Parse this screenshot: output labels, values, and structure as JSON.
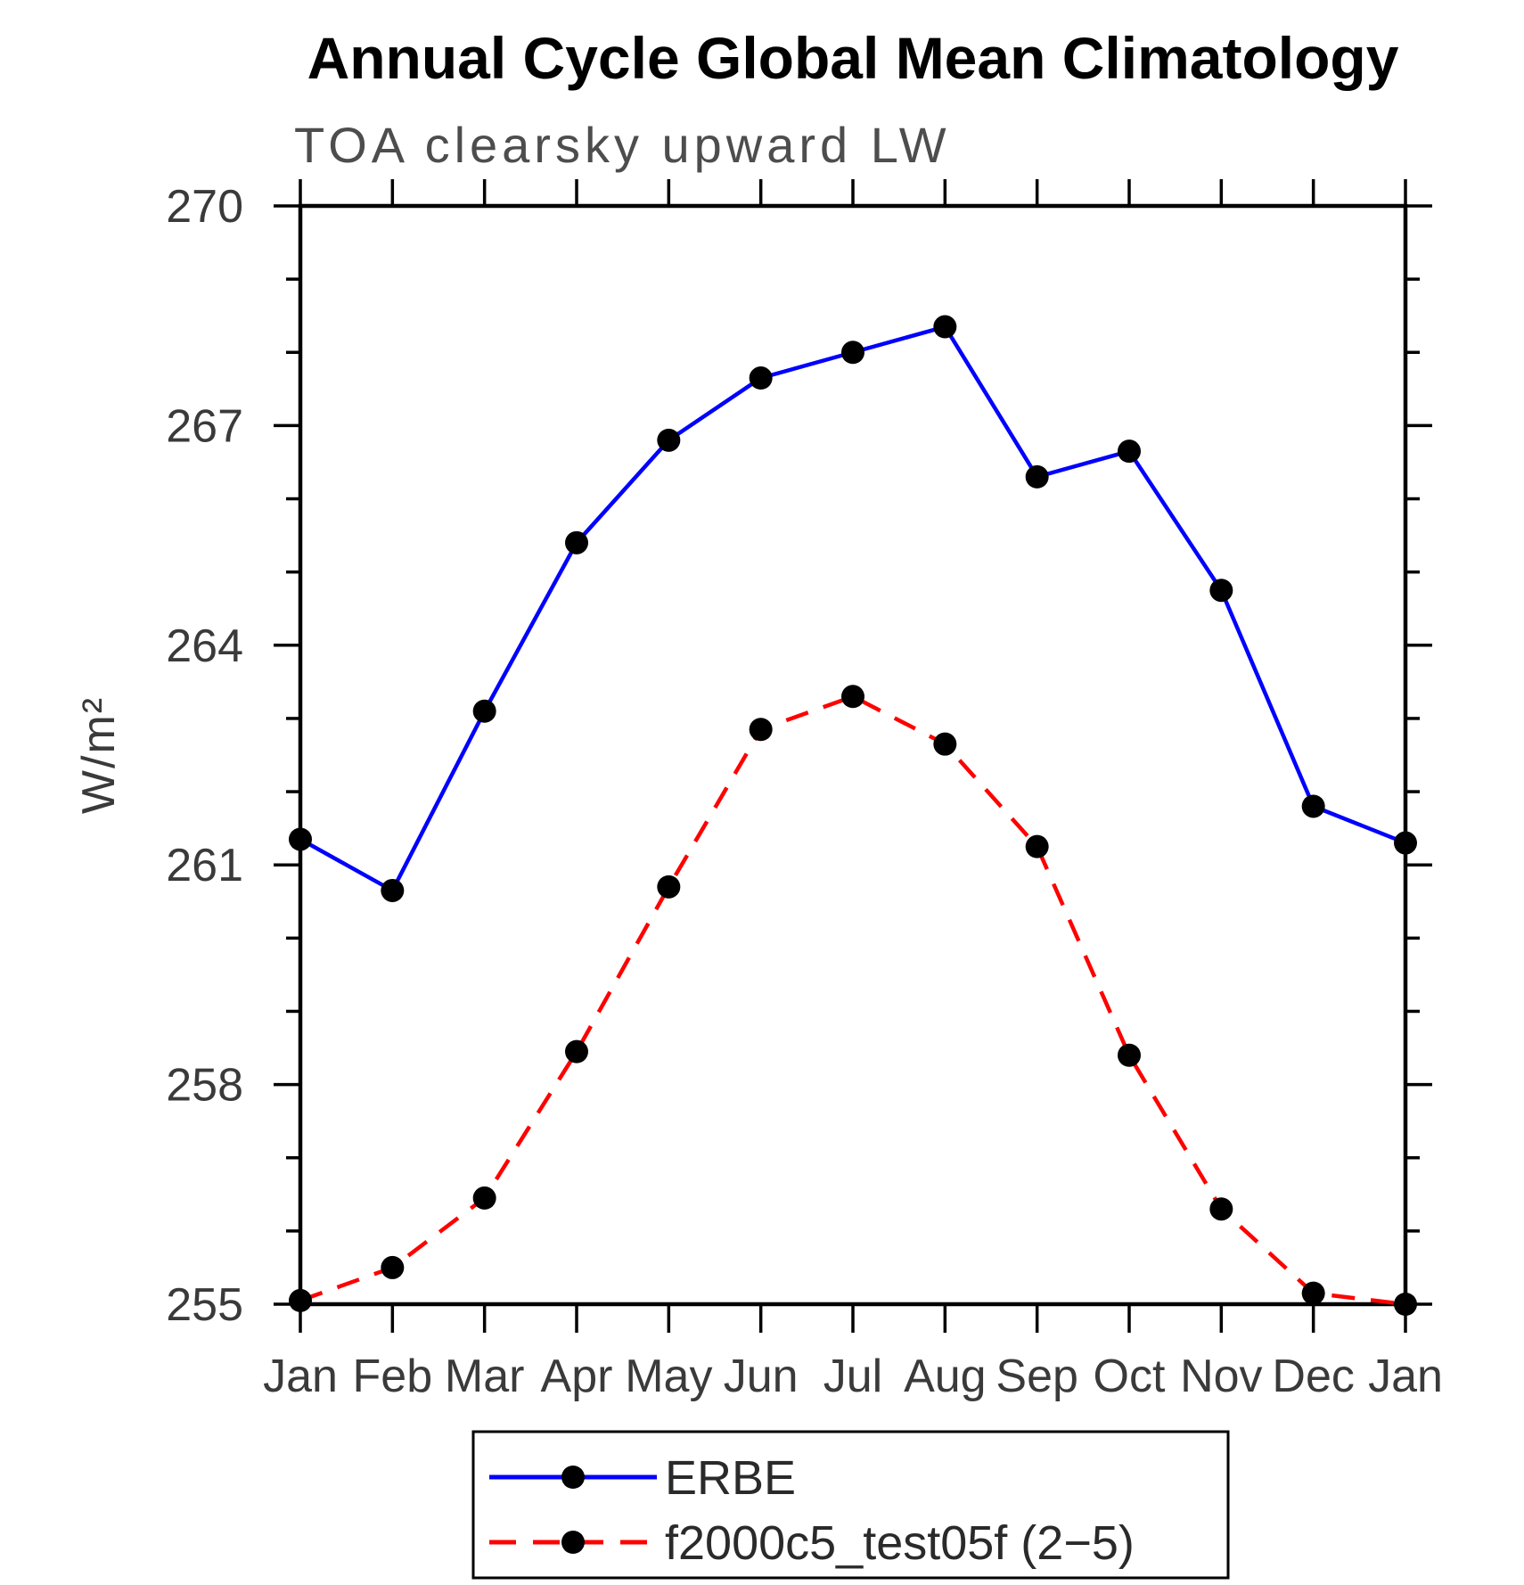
{
  "page": {
    "background": "#ffffff"
  },
  "chart_data": {
    "type": "line",
    "title": "Annual Cycle Global Mean Climatology",
    "subtitle": "TOA clearsky upward LW",
    "ylabel": "W/m²",
    "xlabel": "",
    "categories": [
      "Jan",
      "Feb",
      "Mar",
      "Apr",
      "May",
      "Jun",
      "Jul",
      "Aug",
      "Sep",
      "Oct",
      "Nov",
      "Dec",
      "Jan"
    ],
    "ylim": [
      255,
      270
    ],
    "ytick_major": [
      255,
      258,
      261,
      264,
      267,
      270
    ],
    "ytick_minor_step": 1,
    "grid": false,
    "legend_position": "bottom-center",
    "marker": "filled-circle",
    "marker_color": "#000000",
    "series": [
      {
        "name": "ERBE",
        "color": "#0000ff",
        "style": "solid",
        "values": [
          261.35,
          260.65,
          263.1,
          265.4,
          266.8,
          267.65,
          268.0,
          268.35,
          266.3,
          266.65,
          264.75,
          261.8,
          261.3
        ]
      },
      {
        "name": "f2000c5_test05f (2−5)",
        "color": "#ff0000",
        "style": "dashed",
        "values": [
          255.05,
          255.5,
          256.45,
          258.45,
          260.7,
          262.85,
          263.3,
          262.65,
          261.25,
          258.4,
          256.3,
          255.15,
          255.0
        ]
      }
    ]
  }
}
